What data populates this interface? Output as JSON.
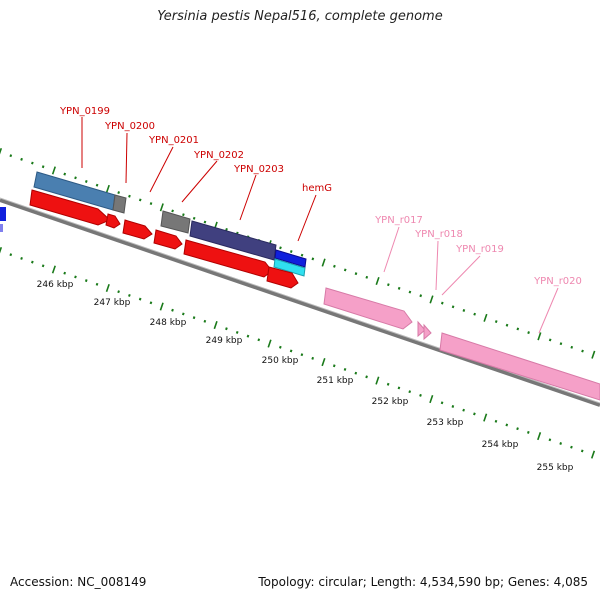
{
  "title": "Yersinia pestis Nepal516, complete genome",
  "accession": "Accession: NC_008149",
  "summary": "Topology: circular; Length: 4,534,590 bp; Genes: 4,085",
  "colors": {
    "backbone": "#888888",
    "tick_ring": "#1a7a1a",
    "gene_label": "#cc0000",
    "rna_label": "#ee88b0",
    "cds_red": "#ee1111",
    "rna_pink": "#f5a0c8",
    "blue_cds": "#4a7fb0",
    "gray_cds": "#777777",
    "navy_cds": "#40407f",
    "blue_bright": "#1020dd",
    "cyan": "#30e0f0"
  },
  "ticks": [
    {
      "label": "246 kbp"
    },
    {
      "label": "247 kbp"
    },
    {
      "label": "248 kbp"
    },
    {
      "label": "249 kbp"
    },
    {
      "label": "250 kbp"
    },
    {
      "label": "251 kbp"
    },
    {
      "label": "252 kbp"
    },
    {
      "label": "253 kbp"
    },
    {
      "label": "254 kbp"
    },
    {
      "label": "255 kbp"
    }
  ],
  "gene_labels": [
    {
      "name": "YPN_0199",
      "type": "cds"
    },
    {
      "name": "YPN_0200",
      "type": "cds"
    },
    {
      "name": "YPN_0201",
      "type": "cds"
    },
    {
      "name": "YPN_0202",
      "type": "cds"
    },
    {
      "name": "YPN_0203",
      "type": "cds"
    },
    {
      "name": "hemG",
      "type": "cds"
    },
    {
      "name": "YPN_r017",
      "type": "rna"
    },
    {
      "name": "YPN_r018",
      "type": "rna"
    },
    {
      "name": "YPN_r019",
      "type": "rna"
    },
    {
      "name": "YPN_r020",
      "type": "rna"
    }
  ]
}
